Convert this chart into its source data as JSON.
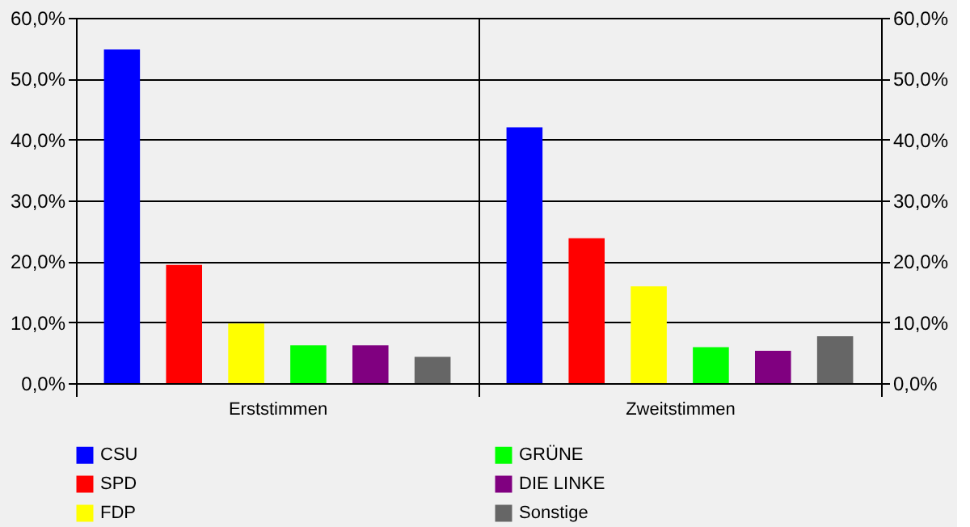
{
  "chart_data": {
    "type": "bar",
    "categories": [
      "Erststimmen",
      "Zweitstimmen"
    ],
    "series": [
      {
        "name": "CSU",
        "color": "#0000ff",
        "values": [
          54.8,
          42.0
        ]
      },
      {
        "name": "SPD",
        "color": "#ff0000",
        "values": [
          19.4,
          23.8
        ]
      },
      {
        "name": "FDP",
        "color": "#ffff00",
        "values": [
          9.8,
          15.9
        ]
      },
      {
        "name": "GRÜNE",
        "color": "#00ff00",
        "values": [
          6.2,
          5.9
        ]
      },
      {
        "name": "DIE LINKE",
        "color": "#800080",
        "values": [
          6.2,
          5.3
        ]
      },
      {
        "name": "Sonstige",
        "color": "#666666",
        "values": [
          4.3,
          7.7
        ]
      }
    ],
    "ylim": [
      0,
      60
    ],
    "yticks": [
      {
        "value": 0,
        "label": "0,0%"
      },
      {
        "value": 10,
        "label": "10,0%"
      },
      {
        "value": 20,
        "label": "20,0%"
      },
      {
        "value": 30,
        "label": "30,0%"
      },
      {
        "value": 40,
        "label": "40,0%"
      },
      {
        "value": 50,
        "label": "50,0%"
      },
      {
        "value": 60,
        "label": "60,0%"
      }
    ],
    "y2lim": [
      0,
      60
    ],
    "y2ticks": [
      {
        "value": 0,
        "label": "0,0%"
      },
      {
        "value": 10,
        "label": "10,0%"
      },
      {
        "value": 20,
        "label": "20,0%"
      },
      {
        "value": 30,
        "label": "30,0%"
      },
      {
        "value": 40,
        "label": "40,0%"
      },
      {
        "value": 50,
        "label": "50,0%"
      },
      {
        "value": 60,
        "label": "60,0%"
      }
    ],
    "grid": true,
    "legend": "bottom"
  }
}
